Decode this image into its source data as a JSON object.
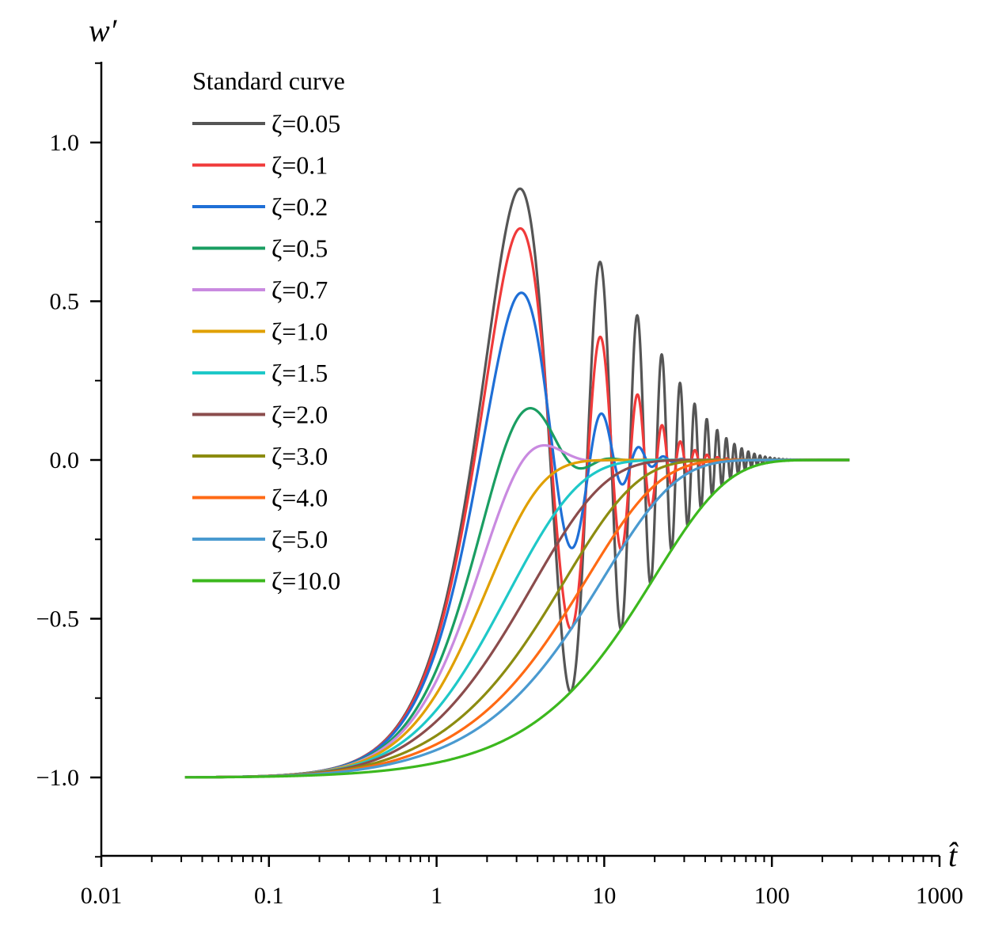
{
  "chart_data": {
    "type": "line",
    "title": "",
    "xlabel": "t̂",
    "ylabel": "w′",
    "xscale": "log",
    "xlim": [
      0.01,
      1000
    ],
    "ylim": [
      -1.25,
      1.25
    ],
    "x_ticks": [
      0.01,
      0.1,
      1,
      10,
      100,
      1000
    ],
    "x_tick_labels": [
      "0.01",
      "0.1",
      "1",
      "10",
      "100",
      "1000"
    ],
    "y_ticks": [
      -1.0,
      -0.5,
      0.0,
      0.5,
      1.0
    ],
    "y_tick_labels": [
      "−1.0",
      "−0.5",
      "0.0",
      "0.5",
      "1.0"
    ],
    "legend_title": "Standard curve",
    "legend_position": "top-left",
    "series": [
      {
        "name": "ζ=0.05",
        "zeta": 0.05,
        "color": "#555555"
      },
      {
        "name": "ζ=0.1",
        "zeta": 0.1,
        "color": "#f03a3a"
      },
      {
        "name": "ζ=0.2",
        "zeta": 0.2,
        "color": "#1f6fd6"
      },
      {
        "name": "ζ=0.5",
        "zeta": 0.5,
        "color": "#1a9e62"
      },
      {
        "name": "ζ=0.7",
        "zeta": 0.7,
        "color": "#c98ae0"
      },
      {
        "name": "ζ=1.0",
        "zeta": 1.0,
        "color": "#e0a000"
      },
      {
        "name": "ζ=1.5",
        "zeta": 1.5,
        "color": "#1ec8c8"
      },
      {
        "name": "ζ=2.0",
        "zeta": 2.0,
        "color": "#8b4c4c"
      },
      {
        "name": "ζ=3.0",
        "zeta": 3.0,
        "color": "#8c8c10"
      },
      {
        "name": "ζ=4.0",
        "zeta": 4.0,
        "color": "#ff6a14"
      },
      {
        "name": "ζ=5.0",
        "zeta": 5.0,
        "color": "#4a9ad0"
      },
      {
        "name": "ζ=10.0",
        "zeta": 10.0,
        "color": "#3cb81e"
      }
    ],
    "x_range_data": [
      0.0316,
      290
    ]
  }
}
